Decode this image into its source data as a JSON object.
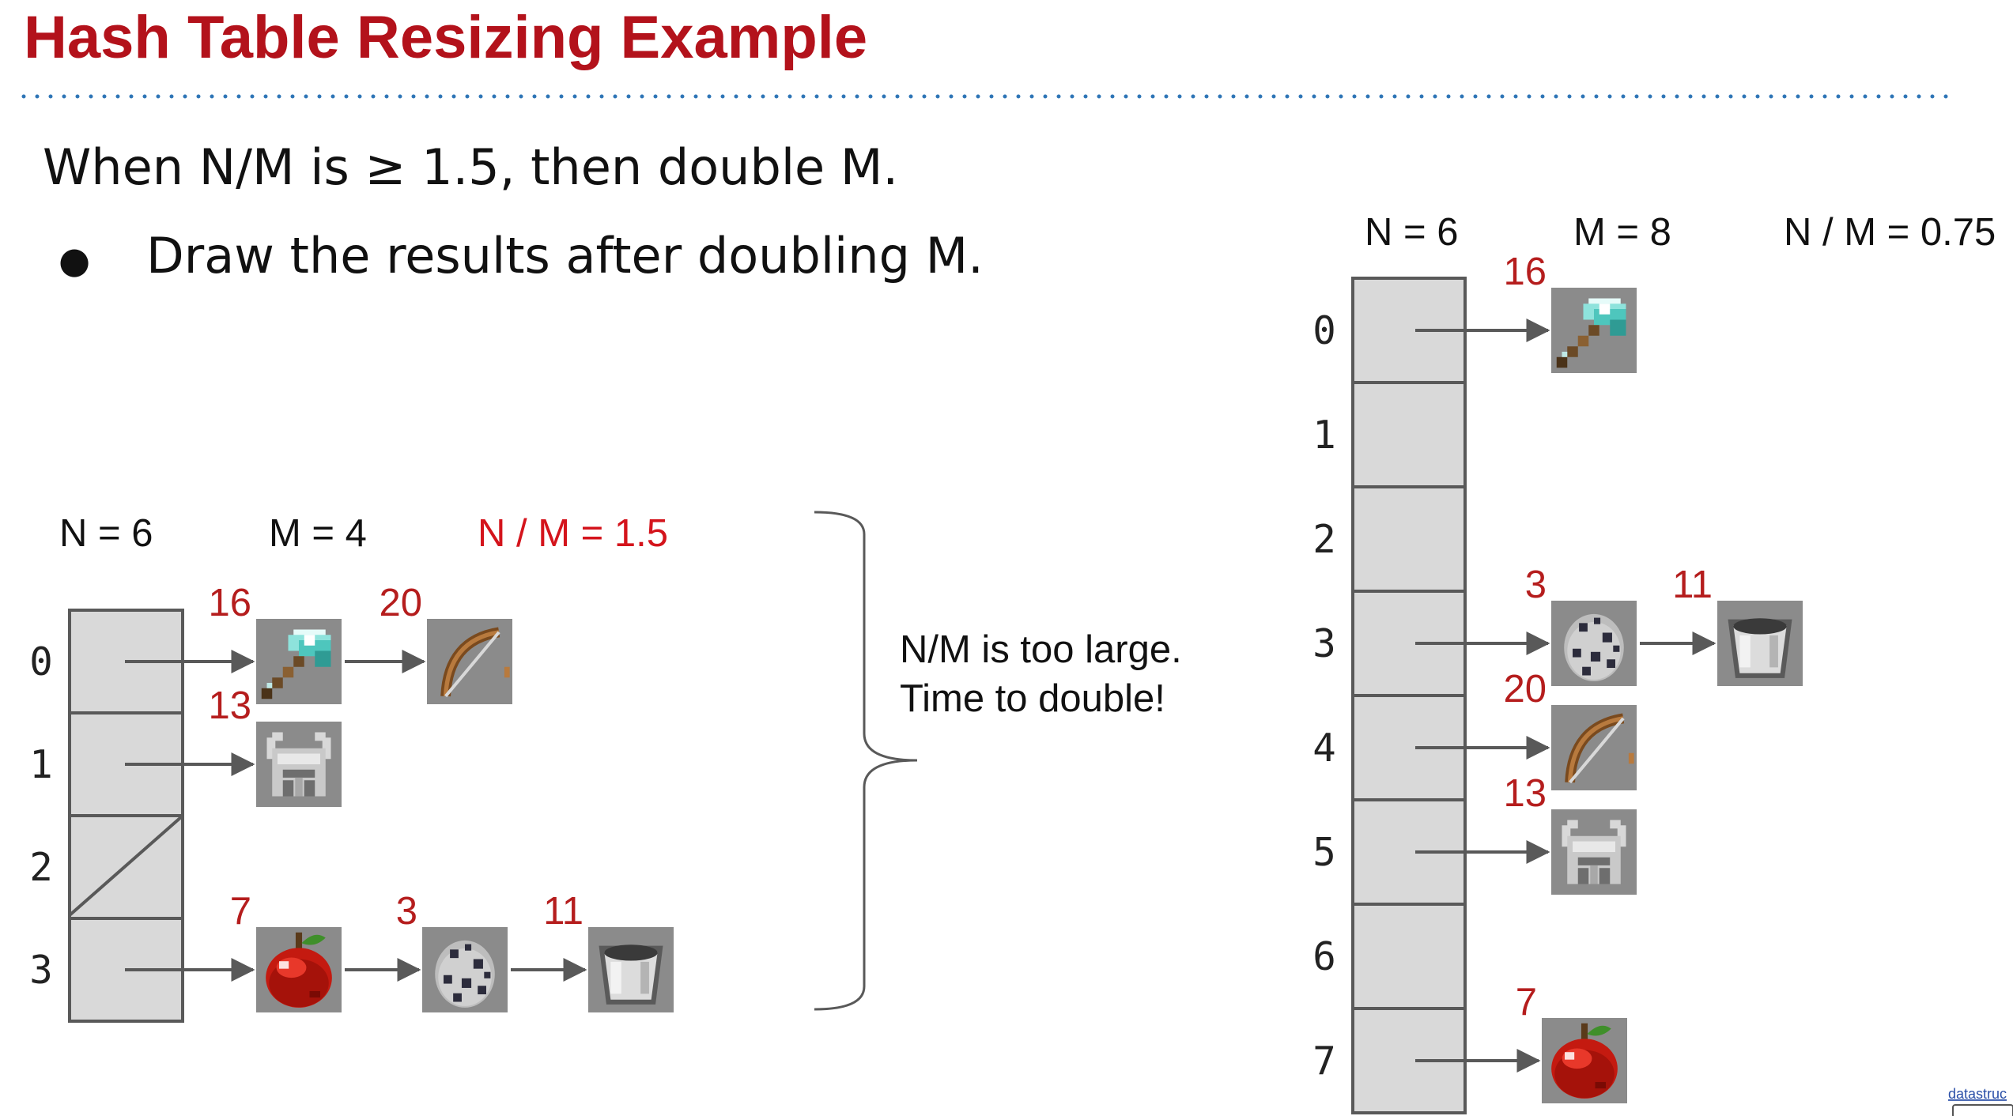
{
  "slide": {
    "title": "Hash Table Resizing Example",
    "rule_text": "When N/M is ≥ 1.5, then double M.",
    "bullet_symbol": "●",
    "bullet_text": "Draw the results after doubling M.",
    "note_line1": "N/M is too large.",
    "note_line2": "Time to double!",
    "footer_link": "datastruc"
  },
  "colors": {
    "title": "#b3121b",
    "dotted_rule": "#2e75b6",
    "warning_stat": "#d4141c",
    "key": "#b51d1d",
    "bucket_fill": "#d9d9d9",
    "bucket_border": "#595959",
    "arrow": "#595959"
  },
  "before": {
    "n_label": "N = 6",
    "m_label": "M = 4",
    "ratio_label": "N / M = 1.5",
    "buckets": [
      {
        "index": "0",
        "empty": false,
        "items": [
          {
            "key": "16",
            "icon": "diamond-axe-icon"
          },
          {
            "key": "20",
            "icon": "bow-icon"
          }
        ]
      },
      {
        "index": "1",
        "empty": false,
        "items": [
          {
            "key": "13",
            "icon": "iron-helmet-icon"
          }
        ]
      },
      {
        "index": "2",
        "empty": true,
        "items": []
      },
      {
        "index": "3",
        "empty": false,
        "items": [
          {
            "key": "7",
            "icon": "apple-icon"
          },
          {
            "key": "3",
            "icon": "spawn-egg-icon"
          },
          {
            "key": "11",
            "icon": "bucket-icon"
          }
        ]
      }
    ]
  },
  "after": {
    "n_label": "N = 6",
    "m_label": "M = 8",
    "ratio_label": "N / M = 0.75",
    "buckets": [
      {
        "index": "0",
        "items": [
          {
            "key": "16",
            "icon": "diamond-axe-icon"
          }
        ]
      },
      {
        "index": "1",
        "items": []
      },
      {
        "index": "2",
        "items": []
      },
      {
        "index": "3",
        "items": [
          {
            "key": "3",
            "icon": "spawn-egg-icon"
          },
          {
            "key": "11",
            "icon": "bucket-icon"
          }
        ]
      },
      {
        "index": "4",
        "items": [
          {
            "key": "20",
            "icon": "bow-icon"
          }
        ]
      },
      {
        "index": "5",
        "items": [
          {
            "key": "13",
            "icon": "iron-helmet-icon"
          }
        ]
      },
      {
        "index": "6",
        "items": []
      },
      {
        "index": "7",
        "items": [
          {
            "key": "7",
            "icon": "apple-icon"
          }
        ]
      }
    ]
  }
}
